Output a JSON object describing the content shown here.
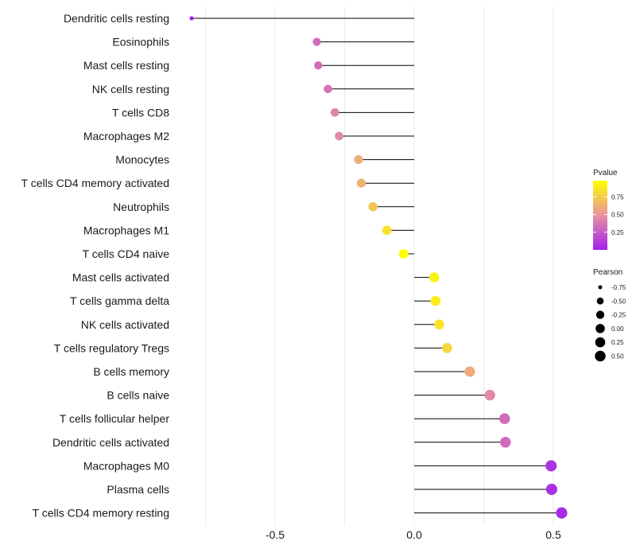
{
  "chart_data": {
    "type": "lollipop",
    "xlim": [
      -0.75,
      0.55
    ],
    "xticks": [
      -0.5,
      0.0,
      0.5
    ],
    "xtick_labels": [
      "-0.5",
      "0.0",
      "0.5"
    ],
    "x_gridlines": [
      -0.75,
      -0.5,
      -0.25,
      0.0,
      0.25,
      0.5
    ],
    "categories": [
      "Dendritic cells resting",
      "Eosinophils",
      "Mast cells resting",
      "NK cells resting",
      "T cells CD8",
      "Macrophages M2",
      "Monocytes",
      "T cells CD4 memory activated",
      "Neutrophils",
      "Macrophages M1",
      "T cells CD4 naive",
      "Mast cells activated",
      "T cells gamma delta",
      "NK cells activated",
      "T cells regulatory  Tregs",
      "B cells memory",
      "B cells naive",
      "T cells follicular helper",
      "Dendritic cells activated",
      "Macrophages M0",
      "Plasma cells",
      "T cells CD4 memory resting"
    ],
    "pearson": [
      -0.8,
      -0.35,
      -0.345,
      -0.31,
      -0.285,
      -0.27,
      -0.2,
      -0.19,
      -0.148,
      -0.098,
      -0.038,
      0.072,
      0.077,
      0.09,
      0.118,
      0.2,
      0.272,
      0.325,
      0.328,
      0.492,
      0.494,
      0.53
    ],
    "pvalue": [
      0.0,
      0.33,
      0.34,
      0.36,
      0.44,
      0.45,
      0.62,
      0.64,
      0.72,
      0.84,
      0.98,
      0.92,
      0.9,
      0.86,
      0.8,
      0.6,
      0.45,
      0.33,
      0.32,
      0.08,
      0.07,
      0.05
    ],
    "color_legend": {
      "title": "Pvalue",
      "range": [
        0.0,
        0.98
      ],
      "ticks": [
        0.25,
        0.5,
        0.75
      ],
      "tick_labels": [
        "0.25",
        "0.50",
        "0.75"
      ],
      "low_color": "#a020f0",
      "mid_color": "#e892a0",
      "high_color": "#ffff00"
    },
    "size_legend": {
      "title": "Pearson",
      "values": [
        -0.75,
        -0.5,
        -0.25,
        0.0,
        0.25,
        0.5
      ],
      "labels": [
        "-0.75",
        "-0.50",
        "-0.25",
        "0.00",
        "0.25",
        "0.50"
      ]
    }
  }
}
